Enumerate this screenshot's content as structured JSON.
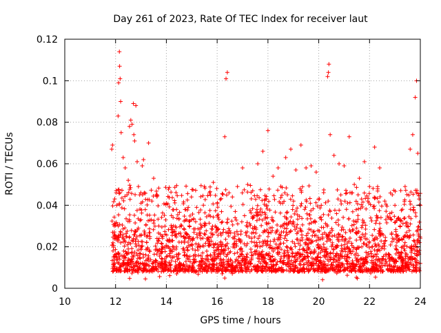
{
  "chart_data": {
    "type": "scatter",
    "title": "Day 261 of 2023, Rate Of TEC Index for receiver laut",
    "xlabel": "GPS time / hours",
    "ylabel": "ROTI / TECUs",
    "xlim": [
      10,
      24
    ],
    "ylim": [
      0,
      0.12
    ],
    "x_ticks": [
      10,
      12,
      14,
      16,
      18,
      20,
      22,
      24
    ],
    "x_tick_labels": [
      "10",
      "12",
      "14",
      "16",
      "18",
      "20",
      "22",
      "24"
    ],
    "y_ticks": [
      0,
      0.02,
      0.04,
      0.06,
      0.08,
      0.1,
      0.12
    ],
    "y_tick_labels": [
      "0",
      "0.02",
      "0.04",
      "0.06",
      "0.08",
      "0.1",
      "0.12"
    ],
    "grid": true,
    "marker": "+",
    "marker_color": "#ff0000",
    "data_range_x": [
      11.85,
      24.0
    ],
    "series": [
      {
        "name": "ROTI",
        "x": [
          11.85,
          11.88,
          11.9,
          11.92,
          11.95,
          12.02,
          12.05,
          12.1,
          12.12,
          12.15,
          12.16,
          12.18,
          12.2,
          12.22,
          12.3,
          12.38,
          12.45,
          12.5,
          12.55,
          12.6,
          12.65,
          12.7,
          12.72,
          12.75,
          12.8,
          12.85,
          12.9,
          12.95,
          13.0,
          13.05,
          13.1,
          13.3,
          13.5,
          13.6,
          13.7,
          13.85,
          14.0,
          14.2,
          14.4,
          14.6,
          14.8,
          15.0,
          15.2,
          15.4,
          15.5,
          15.7,
          15.85,
          16.0,
          16.2,
          16.3,
          16.35,
          16.4,
          16.6,
          16.8,
          17.0,
          17.2,
          17.4,
          17.6,
          17.8,
          17.95,
          18.0,
          18.2,
          18.4,
          18.5,
          18.7,
          18.9,
          19.1,
          19.3,
          19.5,
          19.7,
          19.9,
          20.1,
          20.35,
          20.38,
          20.4,
          20.45,
          20.6,
          20.8,
          21.0,
          21.2,
          21.4,
          21.6,
          21.8,
          22.0,
          22.2,
          22.4,
          22.6,
          22.8,
          23.0,
          23.2,
          23.4,
          23.6,
          23.7,
          23.8,
          23.85,
          23.9,
          23.95,
          24.0
        ],
        "y": [
          0.067,
          0.069,
          0.018,
          0.012,
          0.03,
          0.025,
          0.04,
          0.083,
          0.099,
          0.114,
          0.107,
          0.101,
          0.09,
          0.075,
          0.063,
          0.058,
          0.045,
          0.052,
          0.078,
          0.081,
          0.079,
          0.089,
          0.074,
          0.071,
          0.088,
          0.061,
          0.049,
          0.045,
          0.033,
          0.059,
          0.062,
          0.07,
          0.053,
          0.045,
          0.03,
          0.025,
          0.041,
          0.035,
          0.038,
          0.03,
          0.033,
          0.033,
          0.026,
          0.03,
          0.049,
          0.046,
          0.051,
          0.035,
          0.032,
          0.073,
          0.101,
          0.104,
          0.044,
          0.049,
          0.058,
          0.05,
          0.047,
          0.06,
          0.066,
          0.04,
          0.076,
          0.054,
          0.058,
          0.041,
          0.063,
          0.067,
          0.057,
          0.069,
          0.058,
          0.059,
          0.056,
          0.04,
          0.102,
          0.104,
          0.108,
          0.074,
          0.064,
          0.06,
          0.059,
          0.073,
          0.05,
          0.053,
          0.061,
          0.049,
          0.068,
          0.058,
          0.042,
          0.036,
          0.04,
          0.03,
          0.049,
          0.067,
          0.074,
          0.092,
          0.1,
          0.065,
          0.043,
          0.04
        ]
      }
    ],
    "background_cloud": {
      "description": "dense band of ROTI points between roughly 0.005 and 0.035 TECUs for all times 11.85 to 24.0 h",
      "x_range": [
        11.85,
        24.0
      ],
      "y_typical_range": [
        0.004,
        0.035
      ]
    }
  }
}
